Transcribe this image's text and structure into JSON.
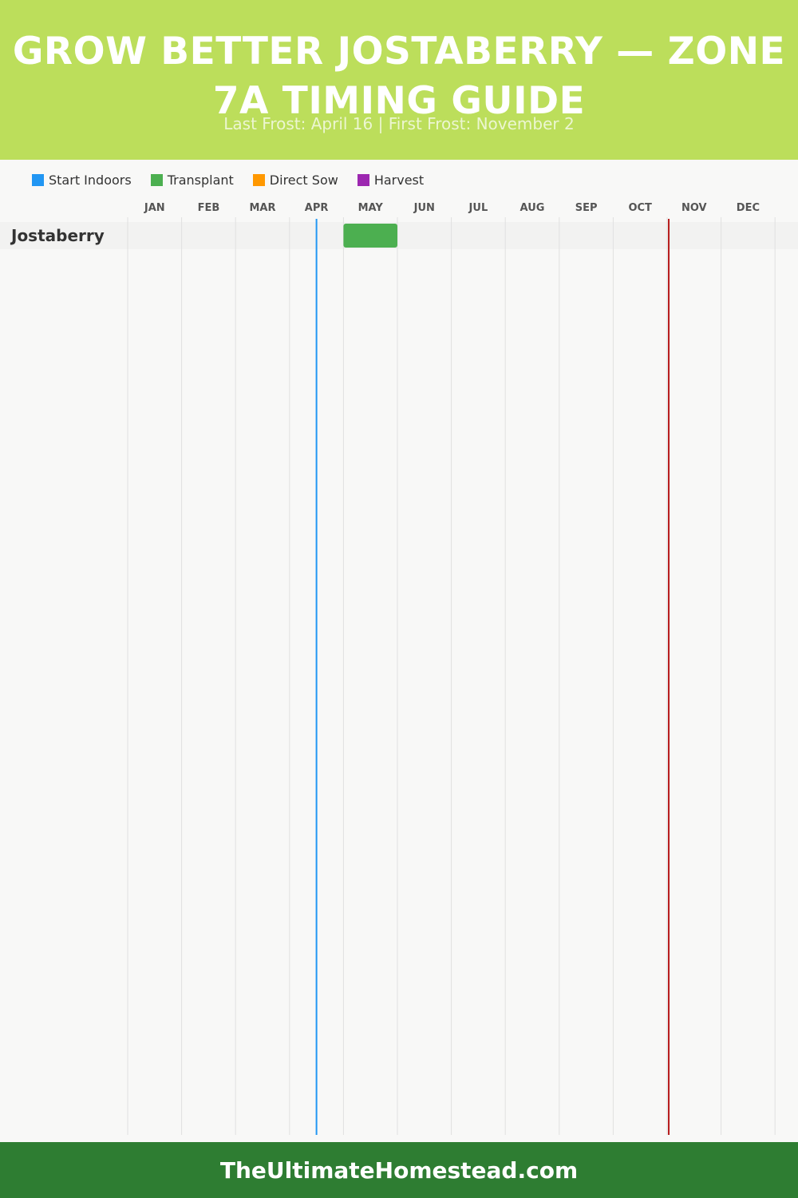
{
  "header": {
    "title": "GROW BETTER JOSTABERRY — ZONE 7A TIMING GUIDE",
    "subtitle": "Last Frost: April 16 | First Frost: November 2"
  },
  "legend": [
    {
      "label": "Start Indoors",
      "color": "#2196f3"
    },
    {
      "label": "Transplant",
      "color": "#4caf50"
    },
    {
      "label": "Direct Sow",
      "color": "#ff9800"
    },
    {
      "label": "Harvest",
      "color": "#9c27b0"
    }
  ],
  "chart_data": {
    "type": "gantt",
    "x_axis": {
      "unit": "month",
      "categories": [
        "JAN",
        "FEB",
        "MAR",
        "APR",
        "MAY",
        "JUN",
        "JUL",
        "AUG",
        "SEP",
        "OCT",
        "NOV",
        "DEC"
      ],
      "range": [
        1,
        13
      ]
    },
    "grid": true,
    "rows": [
      {
        "label": "Jostaberry",
        "bars": [
          {
            "type": "Transplant",
            "start": "May 1",
            "end": "May 31",
            "start_month": 5.0,
            "end_month": 6.0,
            "color": "#4caf50"
          }
        ]
      }
    ],
    "markers": [
      {
        "label": "Last Frost",
        "date": "April 16",
        "month": 4.5,
        "color": "#2196f3"
      },
      {
        "label": "First Frost",
        "date": "November 2",
        "month": 11.03,
        "color": "#b71c1c"
      }
    ]
  },
  "footer": {
    "text": "TheUltimateHomestead.com"
  }
}
